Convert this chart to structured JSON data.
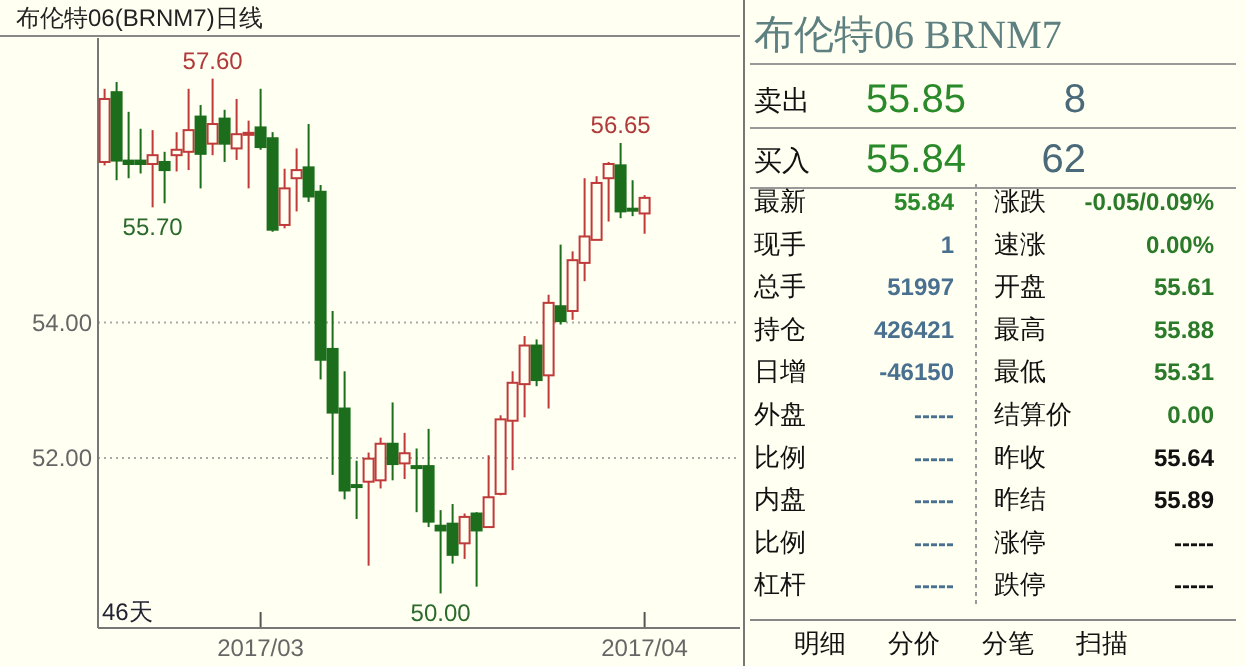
{
  "chart_data": [
    {
      "type": "candlestick",
      "title": "布伦特06(BRNM7)日线",
      "categories": [
        null,
        null,
        null,
        null,
        null,
        null,
        null,
        null,
        null,
        null,
        null,
        null,
        null,
        "2017/03",
        null,
        null,
        null,
        null,
        null,
        null,
        null,
        null,
        null,
        null,
        null,
        null,
        null,
        null,
        null,
        null,
        null,
        null,
        null,
        null,
        null,
        null,
        null,
        null,
        null,
        null,
        null,
        null,
        null,
        null,
        null,
        "2017/04"
      ],
      "ohlc": [
        [
          56.37,
          57.45,
          56.32,
          57.3
        ],
        [
          57.4,
          57.55,
          56.1,
          56.39
        ],
        [
          56.39,
          57.11,
          56.13,
          56.34
        ],
        [
          56.39,
          56.86,
          56.2,
          56.34
        ],
        [
          56.34,
          56.84,
          55.7,
          56.47
        ],
        [
          56.37,
          56.52,
          55.76,
          56.25
        ],
        [
          56.47,
          56.81,
          56.23,
          56.55
        ],
        [
          56.52,
          57.45,
          56.25,
          56.84
        ],
        [
          57.04,
          57.21,
          55.98,
          56.49
        ],
        [
          56.64,
          57.6,
          56.47,
          56.93
        ],
        [
          57.01,
          57.14,
          56.37,
          56.64
        ],
        [
          56.57,
          57.3,
          56.4,
          56.78
        ],
        [
          56.78,
          56.98,
          55.98,
          56.8
        ],
        [
          56.88,
          57.45,
          56.55,
          56.59
        ],
        [
          56.72,
          56.81,
          55.34,
          55.37
        ],
        [
          55.44,
          56.27,
          55.39,
          55.98
        ],
        [
          56.13,
          56.57,
          55.64,
          56.25
        ],
        [
          56.29,
          56.93,
          55.78,
          55.86
        ],
        [
          55.93,
          56.03,
          53.16,
          53.45
        ],
        [
          53.61,
          54.17,
          51.75,
          52.67
        ],
        [
          52.73,
          53.28,
          51.39,
          51.52
        ],
        [
          51.6,
          51.96,
          51.1,
          51.59
        ],
        [
          51.65,
          52.08,
          50.41,
          51.99
        ],
        [
          51.67,
          52.3,
          51.55,
          52.21
        ],
        [
          52.21,
          52.82,
          51.67,
          51.91
        ],
        [
          51.92,
          52.37,
          51.69,
          52.07
        ],
        [
          51.88,
          52.14,
          51.2,
          51.86
        ],
        [
          51.88,
          52.43,
          50.98,
          51.06
        ],
        [
          51.0,
          51.23,
          50.0,
          50.93
        ],
        [
          51.03,
          51.32,
          50.44,
          50.57
        ],
        [
          50.74,
          51.18,
          50.51,
          51.13
        ],
        [
          51.18,
          51.2,
          50.1,
          50.93
        ],
        [
          50.98,
          52.04,
          50.98,
          51.42
        ],
        [
          51.47,
          52.63,
          51.45,
          52.57
        ],
        [
          52.55,
          53.28,
          51.82,
          53.11
        ],
        [
          53.09,
          53.8,
          52.6,
          53.66
        ],
        [
          53.66,
          53.75,
          53.06,
          53.15
        ],
        [
          53.22,
          54.41,
          52.73,
          54.29
        ],
        [
          54.24,
          55.15,
          53.97,
          54.02
        ],
        [
          54.17,
          55.05,
          54.04,
          54.92
        ],
        [
          54.88,
          56.13,
          54.61,
          55.27
        ],
        [
          55.22,
          56.16,
          55.22,
          56.06
        ],
        [
          56.13,
          56.37,
          55.49,
          56.34
        ],
        [
          56.32,
          56.65,
          55.54,
          55.64
        ],
        [
          55.68,
          56.1,
          55.57,
          55.67
        ],
        [
          55.61,
          55.88,
          55.31,
          55.84
        ]
      ],
      "ylim": [
        49.49,
        58.2
      ],
      "yticks": [
        {
          "value": 54,
          "label": "54.00"
        },
        {
          "value": 52,
          "label": "52.00"
        }
      ],
      "grid": "y",
      "annotations": [
        "46天",
        {
          "text": "57.60",
          "y": 57.6
        },
        {
          "text": "55.70",
          "y": 55.7
        },
        {
          "text": "56.65",
          "y": 56.65
        },
        {
          "text": "50.00",
          "y": 50.0
        }
      ]
    },
    {
      "type": "other",
      "title": "布伦特06  BRNM7",
      "annotations": [
        "卖出",
        "55.85",
        "8",
        "买入",
        "55.84",
        "62",
        "最新",
        "55.84",
        "涨跌",
        "-0.05/0.09%",
        "现手",
        "1",
        "速涨",
        "0.00%",
        "总手",
        "51997",
        "开盘",
        "55.61",
        "持仓",
        "426421",
        "最高",
        "55.88",
        "日增",
        "-46150",
        "最低",
        "55.31",
        "外盘",
        "-----",
        "结算价",
        "0.00",
        "比例",
        "-----",
        "昨收",
        "55.64",
        "内盘",
        "-----",
        "昨结",
        "55.89",
        "比例",
        "-----",
        "涨停",
        "-----",
        "杠杆",
        "-----",
        "跌停",
        "-----",
        "明细",
        "分价",
        "分笔",
        "扫描"
      ]
    }
  ]
}
